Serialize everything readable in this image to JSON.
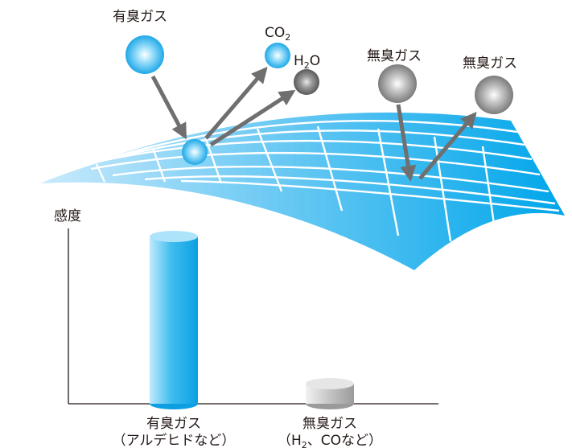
{
  "gases": {
    "odorous_label": "有臭ガス",
    "co2_label": "CO",
    "co2_sub": "2",
    "h2o_label_h": "H",
    "h2o_sub": "2",
    "h2o_label_o": "O",
    "odorless_label_1": "無臭ガス",
    "odorless_label_2": "無臭ガス"
  },
  "chart_data": {
    "type": "bar",
    "ylabel": "感度",
    "categories": [
      "有臭ガス（アルデヒドなど）",
      "無臭ガス（H2、COなど）"
    ],
    "category_lines": [
      {
        "line1": "有臭ガス",
        "line2": "（アルデヒドなど）"
      },
      {
        "line1": "無臭ガス",
        "line2_pre": "（H",
        "line2_sub": "2",
        "line2_post": "、COなど）"
      }
    ],
    "values": [
      1.0,
      0.12
    ]
  },
  "colors": {
    "odorous": "#1ea9e8",
    "odorless": "#8a8a8a",
    "arrow": "#6f6f6f",
    "surface": "#1fb4ec"
  }
}
